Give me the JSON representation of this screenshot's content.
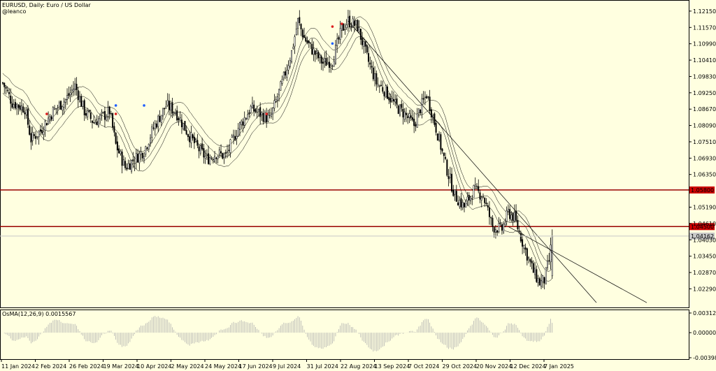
{
  "header": {
    "title": "EURUSD, Daily:  Euro / US Dollar",
    "watermark": "@leanco"
  },
  "colors": {
    "background": "#ffffe0",
    "candle": "#000000",
    "level_line": "#990000",
    "level_label_bg": "#cc0000",
    "bid_line": "#c8c8c8",
    "bid_label_bg": "#c8c8c8",
    "histogram": "#b0b0b0",
    "signal_up": "#2060ff",
    "signal_down": "#dd2020"
  },
  "chart_data": [
    {
      "type": "candlestick",
      "symbol": "EURUSD",
      "timeframe": "Daily",
      "title": "EURUSD, Daily:  Euro / US Dollar",
      "ylim": [
        1.0168,
        1.1242
      ],
      "y_ticks": [
        "1.12150",
        "1.11570",
        "1.10990",
        "1.10410",
        "1.09830",
        "1.09250",
        "1.08670",
        "1.08090",
        "1.07510",
        "1.06930",
        "1.06350",
        "1.05190",
        "1.04610",
        "1.04030",
        "1.03450",
        "1.02870",
        "1.02290"
      ],
      "x_ticks": [
        "11 Jan 2024",
        "2 Feb 2024",
        "26 Feb 2024",
        "19 Mar 2024",
        "10 Apr 2024",
        "2 May 2024",
        "24 May 2024",
        "17 Jun 2024",
        "9 Jul 2024",
        "31 Jul 2024",
        "22 Aug 2024",
        "13 Sep 2024",
        "7 Oct 2024",
        "29 Oct 2024",
        "20 Nov 2024",
        "12 Dec 2024",
        "7 Jan 2025"
      ],
      "waypoints": [
        [
          0,
          1.096
        ],
        [
          6,
          1.089
        ],
        [
          14,
          1.087
        ],
        [
          18,
          1.076
        ],
        [
          24,
          1.079
        ],
        [
          32,
          1.086
        ],
        [
          40,
          1.09
        ],
        [
          46,
          1.095
        ],
        [
          52,
          1.086
        ],
        [
          58,
          1.082
        ],
        [
          66,
          1.085
        ],
        [
          68,
          1.086
        ],
        [
          72,
          1.074
        ],
        [
          78,
          1.066
        ],
        [
          84,
          1.069
        ],
        [
          90,
          1.072
        ],
        [
          96,
          1.08
        ],
        [
          104,
          1.088
        ],
        [
          110,
          1.086
        ],
        [
          118,
          1.078
        ],
        [
          124,
          1.073
        ],
        [
          130,
          1.069
        ],
        [
          136,
          1.071
        ],
        [
          142,
          1.07
        ],
        [
          150,
          1.08
        ],
        [
          158,
          1.087
        ],
        [
          164,
          1.085
        ],
        [
          170,
          1.083
        ],
        [
          178,
          1.096
        ],
        [
          184,
          1.107
        ],
        [
          188,
          1.118
        ],
        [
          192,
          1.112
        ],
        [
          198,
          1.107
        ],
        [
          204,
          1.103
        ],
        [
          210,
          1.104
        ],
        [
          216,
          1.115
        ],
        [
          220,
          1.118
        ],
        [
          226,
          1.116
        ],
        [
          232,
          1.105
        ],
        [
          238,
          1.096
        ],
        [
          244,
          1.093
        ],
        [
          250,
          1.088
        ],
        [
          256,
          1.085
        ],
        [
          262,
          1.081
        ],
        [
          266,
          1.087
        ],
        [
          270,
          1.092
        ],
        [
          276,
          1.08
        ],
        [
          282,
          1.067
        ],
        [
          288,
          1.056
        ],
        [
          294,
          1.052
        ],
        [
          300,
          1.058
        ],
        [
          306,
          1.056
        ],
        [
          312,
          1.045
        ],
        [
          318,
          1.044
        ],
        [
          322,
          1.05
        ],
        [
          326,
          1.048
        ],
        [
          332,
          1.038
        ],
        [
          338,
          1.029
        ],
        [
          342,
          1.025
        ],
        [
          345,
          1.026
        ],
        [
          348,
          1.033
        ],
        [
          350,
          1.041
        ]
      ],
      "moving_average_envelope": "3 lines (middle moving average with upper and lower bands)",
      "horizontal_levels": [
        {
          "label": "1.05800",
          "value": 1.058
        },
        {
          "label": "1.04500",
          "value": 1.045
        }
      ],
      "bid_label": "1.04162",
      "trendlines": [
        {
          "from": [
            "13 Sep 2024",
            1.118
          ],
          "to": [
            "7 Jan 2025 (+20d)",
            1.018
          ]
        },
        {
          "from": [
            "12 Dec 2024",
            1.045
          ],
          "to": [
            "7 Jan 2025 (+45d)",
            1.018
          ]
        }
      ],
      "signal_markers": [
        {
          "label": "up",
          "color": "#2060ff",
          "near": "19 Mar 2024"
        },
        {
          "label": "down",
          "color": "#dd2020",
          "near": "19 Mar 2024"
        },
        {
          "label": "up",
          "color": "#2060ff",
          "near": "22 Aug 2024"
        },
        {
          "label": "down",
          "color": "#dd2020",
          "near": "13 Sep 2024"
        },
        {
          "label": "down",
          "color": "#dd2020",
          "near": "31 Jul 2024"
        }
      ]
    },
    {
      "type": "histogram",
      "indicator": "OsMA(12,26,9)",
      "label": "OsMA(12,26,9) 0.0015567",
      "current_value": 0.0015567,
      "ylim": [
        -0.0039855,
        0.0031273
      ],
      "y_ticks": [
        "0.0031273",
        "0.0000000",
        "-0.0039855"
      ]
    }
  ]
}
